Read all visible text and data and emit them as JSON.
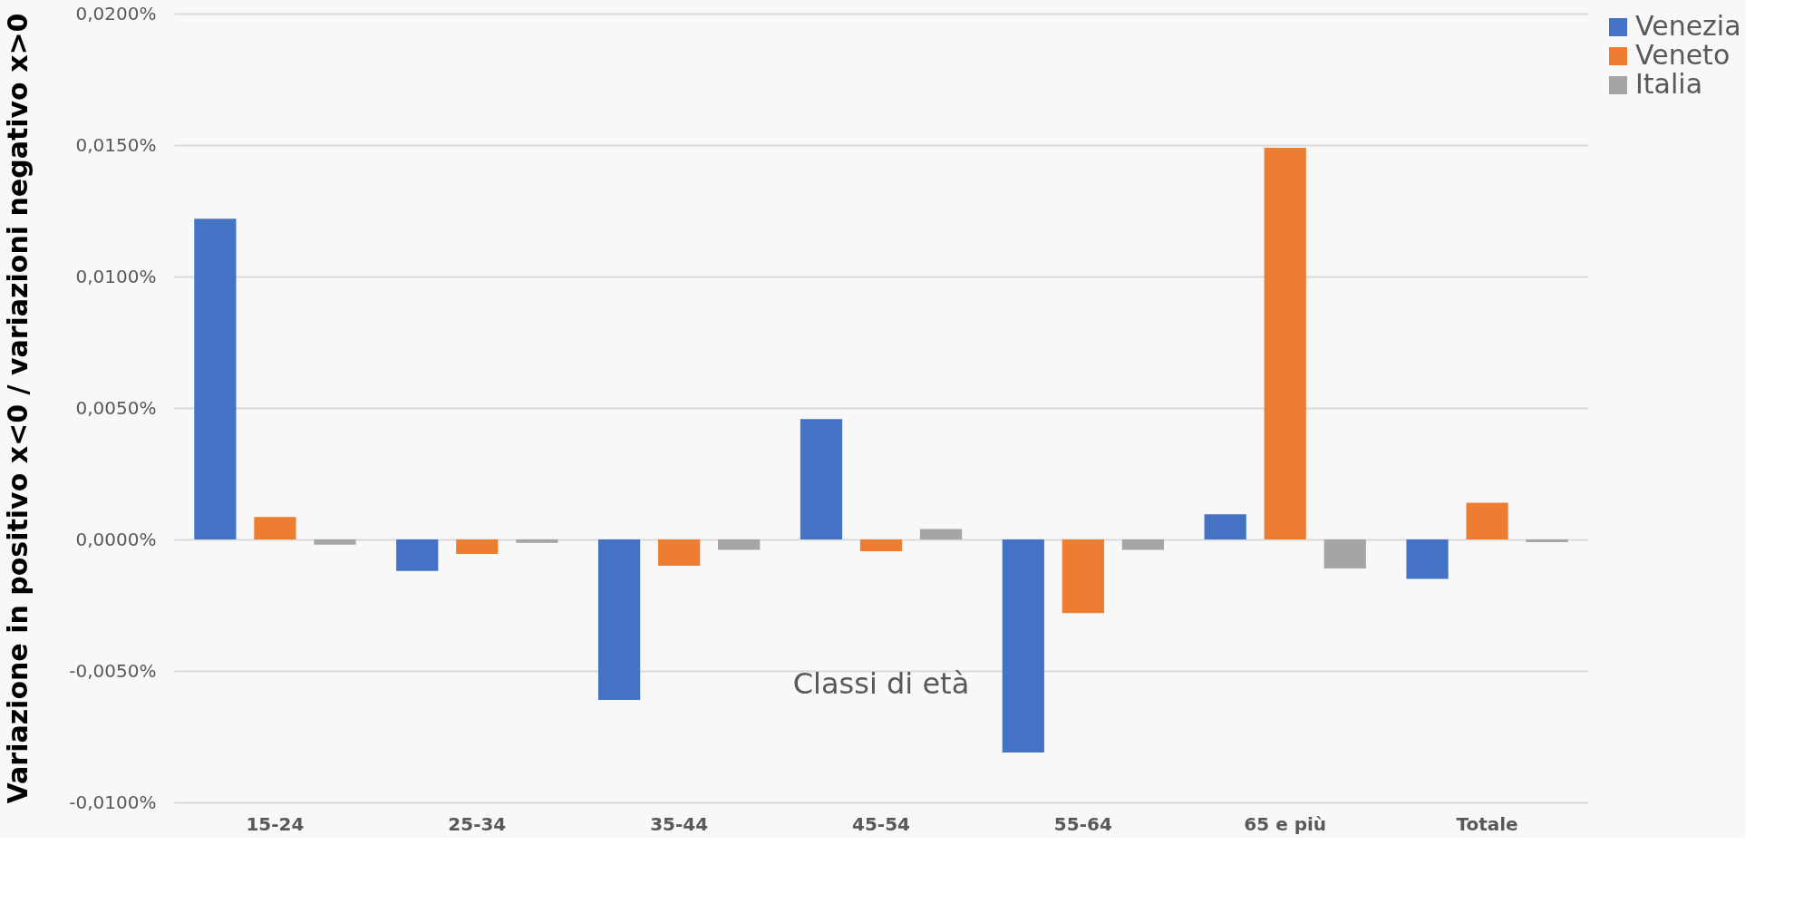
{
  "chart_data": {
    "type": "bar",
    "xlabel": "Classi di età",
    "ylabel": "Variazione in positivo  x<0 / variazioni negativo x>0",
    "categories": [
      "15-24",
      "25-34",
      "35-44",
      "45-54",
      "55-64",
      "65 e più",
      "Totale"
    ],
    "series": [
      {
        "name": "Venezia",
        "color": "#4472c4",
        "values": [
          0.0122,
          -0.0012,
          -0.0061,
          0.00458,
          -0.0081,
          0.00096,
          -0.0015
        ]
      },
      {
        "name": "Veneto",
        "color": "#ed7d31",
        "values": [
          0.00085,
          -0.00055,
          -0.001,
          -0.00045,
          -0.0028,
          0.0149,
          0.0014
        ]
      },
      {
        "name": "Italia",
        "color": "#a5a5a5",
        "values": [
          -0.0002,
          -0.00013,
          -0.0004,
          0.0004,
          -0.0004,
          -0.0011,
          -0.0001
        ]
      }
    ],
    "ylim": [
      -0.01,
      0.02
    ],
    "yticks": [
      {
        "value": -0.01,
        "label": "-0,0100%"
      },
      {
        "value": -0.005,
        "label": "-0,0050%"
      },
      {
        "value": 0,
        "label": "0,0000%"
      },
      {
        "value": 0.005,
        "label": "0,0050%"
      },
      {
        "value": 0.01,
        "label": "0,0100%"
      },
      {
        "value": 0.015,
        "label": "0,0150%"
      },
      {
        "value": 0.02,
        "label": "0,0200%"
      }
    ],
    "grid": "y",
    "legend": "right"
  }
}
